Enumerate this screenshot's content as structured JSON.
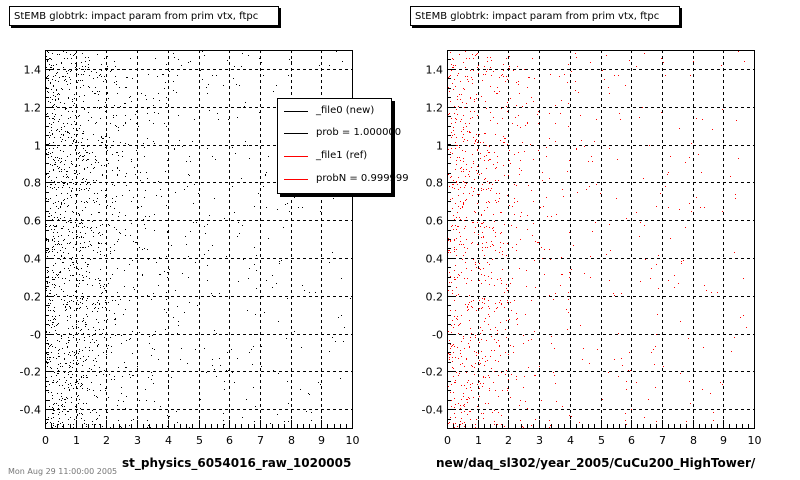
{
  "chart_data": [
    {
      "type": "scatter",
      "title": "StEMB globtrk: impact param from prim vtx, ftpc",
      "xlabel": "st_physics_6054016_raw_1020005",
      "ylabel": "",
      "xlim": [
        0,
        10
      ],
      "ylim": [
        -0.5,
        1.5
      ],
      "x_ticks": [
        "0",
        "1",
        "2",
        "3",
        "4",
        "5",
        "6",
        "7",
        "8",
        "9",
        "10"
      ],
      "y_ticks": [
        "-0.4",
        "-0.2",
        "-0",
        "0.2",
        "0.4",
        "0.6",
        "0.8",
        "1",
        "1.2",
        "1.4"
      ],
      "grid": true,
      "marker_color": "#000000",
      "density_profile": {
        "x_peak": 0.4,
        "note_levels": [
          0.3,
          1.0,
          2.0,
          3.0,
          5.0,
          10.0
        ],
        "relative_density": [
          1.0,
          0.85,
          0.35,
          0.15,
          0.07,
          0.03
        ]
      },
      "series": [
        {
          "name": "_file0 (new)",
          "color": "#000000"
        }
      ]
    },
    {
      "type": "scatter",
      "title": "StEMB globtrk: impact param from prim vtx, ftpc",
      "xlabel": "new/daq_sl302/year_2005/CuCu200_HighTower/",
      "ylabel": "",
      "xlim": [
        0,
        10
      ],
      "ylim": [
        -0.5,
        1.5
      ],
      "x_ticks": [
        "0",
        "1",
        "2",
        "3",
        "4",
        "5",
        "6",
        "7",
        "8",
        "9",
        "10"
      ],
      "y_ticks": [
        "-0.4",
        "-0.2",
        "-0",
        "0.2",
        "0.4",
        "0.6",
        "0.8",
        "1",
        "1.2",
        "1.4"
      ],
      "grid": true,
      "marker_color": "#ff0000",
      "density_profile": {
        "x_peak": 0.4,
        "note_levels": [
          0.3,
          1.0,
          2.0,
          3.0,
          5.0,
          10.0
        ],
        "relative_density": [
          1.0,
          0.85,
          0.35,
          0.15,
          0.07,
          0.03
        ]
      },
      "series": [
        {
          "name": "_file1 (ref)",
          "color": "#ff0000"
        }
      ]
    }
  ],
  "legend": {
    "entries": [
      {
        "label": "_file0 (new)",
        "color": "#000000"
      },
      {
        "label": "prob = 1.000000",
        "color": "#000000"
      },
      {
        "label": "_file1 (ref)",
        "color": "#ff0000"
      },
      {
        "label": "probN = 0.999999",
        "color": "#ff0000"
      }
    ]
  },
  "footer": "Mon Aug 29 11:00:00 2005"
}
